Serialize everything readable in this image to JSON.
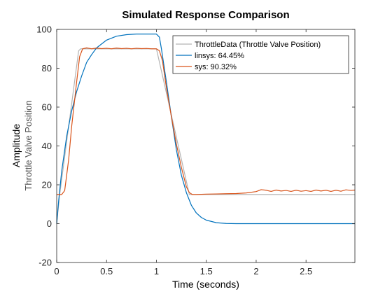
{
  "chart_data": {
    "type": "line",
    "title": "Simulated Response Comparison",
    "xlabel": "Time (seconds)",
    "ylabel": "Amplitude",
    "ylabel_sub": "Throttle Valve Position",
    "xlim": [
      0,
      2.99
    ],
    "ylim": [
      -20,
      100
    ],
    "xticks": [
      0,
      0.5,
      1,
      1.5,
      2,
      2.5
    ],
    "xtick_labels": [
      "0",
      "0.5",
      "1",
      "1.5",
      "2",
      "2.5"
    ],
    "yticks": [
      -20,
      0,
      20,
      40,
      60,
      80,
      100
    ],
    "ytick_labels": [
      "-20",
      "0",
      "20",
      "40",
      "60",
      "80",
      "100"
    ],
    "grid": false,
    "legend_position": "top-right",
    "series": [
      {
        "name": "ThrottleData (Throttle Valve Position)",
        "color": "#b3b3b3",
        "x": [
          0,
          0.03,
          0.22,
          0.24,
          1.0,
          1.33,
          1.35,
          2.99
        ],
        "y": [
          0,
          15,
          89,
          90,
          90,
          15,
          15,
          15
        ]
      },
      {
        "name": "linsys: 64.45%",
        "color": "#0072bd",
        "x": [
          0,
          0.02,
          0.05,
          0.1,
          0.15,
          0.2,
          0.25,
          0.3,
          0.35,
          0.4,
          0.5,
          0.6,
          0.7,
          0.8,
          0.9,
          1.0,
          1.03,
          1.05,
          1.1,
          1.15,
          1.2,
          1.25,
          1.3,
          1.35,
          1.4,
          1.45,
          1.5,
          1.6,
          1.7,
          1.8,
          1.9,
          2.0,
          2.5,
          2.99
        ],
        "y": [
          0,
          12,
          27,
          45,
          58,
          68,
          76,
          83,
          87,
          90.5,
          94.5,
          96.5,
          97.3,
          97.6,
          97.6,
          97.6,
          96,
          90,
          73,
          55,
          38,
          25,
          16,
          9.5,
          5.5,
          3.2,
          1.8,
          0.5,
          0.1,
          0,
          0,
          0,
          0,
          0
        ]
      },
      {
        "name": "sys: 90.32%",
        "color": "#d95319",
        "x": [
          0,
          0.05,
          0.08,
          0.12,
          0.15,
          0.2,
          0.23,
          0.26,
          0.3,
          0.35,
          0.4,
          0.45,
          0.5,
          0.55,
          0.6,
          0.65,
          0.7,
          0.75,
          0.8,
          0.85,
          0.9,
          0.95,
          1.0,
          1.03,
          1.06,
          1.1,
          1.15,
          1.2,
          1.25,
          1.3,
          1.33,
          1.36,
          1.4,
          1.5,
          1.6,
          1.7,
          1.8,
          1.9,
          2.0,
          2.05,
          2.1,
          2.15,
          2.2,
          2.25,
          2.3,
          2.35,
          2.4,
          2.45,
          2.5,
          2.55,
          2.6,
          2.65,
          2.7,
          2.75,
          2.8,
          2.85,
          2.9,
          2.95,
          2.99
        ],
        "y": [
          15,
          15,
          17,
          33,
          50,
          73,
          86,
          90,
          90.5,
          90,
          90.4,
          90.1,
          90.3,
          90,
          90.4,
          90.1,
          90.3,
          90,
          90.3,
          90.1,
          90.2,
          90,
          90,
          89,
          84,
          70,
          55,
          41,
          29,
          19,
          16,
          15,
          15,
          15.2,
          15.3,
          15.4,
          15.5,
          15.8,
          16.5,
          17.5,
          17.2,
          16.6,
          17.3,
          16.8,
          17.1,
          16.6,
          17.2,
          16.7,
          17.0,
          16.6,
          17.3,
          16.8,
          17.2,
          16.6,
          17.2,
          16.7,
          17.4,
          17.1,
          17.3
        ]
      }
    ]
  }
}
